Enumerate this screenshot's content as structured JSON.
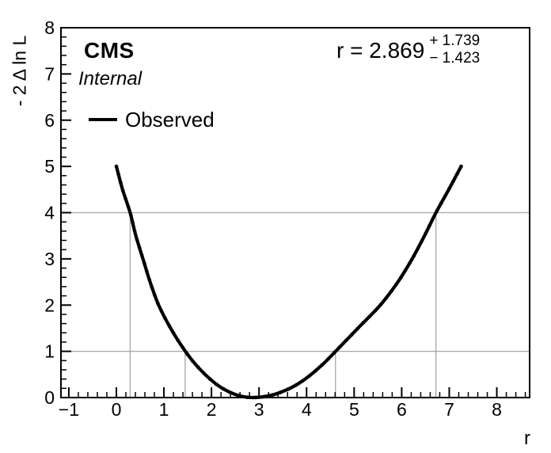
{
  "chart_data": {
    "type": "line",
    "header": {
      "experiment": "CMS",
      "status": "Internal"
    },
    "fit_result": {
      "text": "r = 2.869",
      "plus": "+ 1.739",
      "minus": "− 1.423",
      "parameter": "r",
      "value": 2.869,
      "uncertainty_up": 1.739,
      "uncertainty_down": 1.423
    },
    "xlabel": "r",
    "ylabel": "- 2 Δ ln L",
    "xlim": [
      -1.165,
      8.69
    ],
    "ylim": [
      0,
      8
    ],
    "x_ticks": [
      -1,
      0,
      1,
      2,
      3,
      4,
      5,
      6,
      7,
      8
    ],
    "y_ticks": [
      0,
      1,
      2,
      3,
      4,
      5,
      6,
      7,
      8
    ],
    "minor_divisions": 5,
    "grid_color": "#a6a6a6",
    "curve_color": "#000000",
    "legend": [
      {
        "label": "Observed",
        "color": "#000000",
        "style": "line"
      }
    ],
    "series": [
      {
        "name": "Observed",
        "color": "#000000",
        "points": [
          [
            0.0,
            5.0
          ],
          [
            0.13,
            4.5
          ],
          [
            0.29,
            4.0
          ],
          [
            0.41,
            3.5
          ],
          [
            0.56,
            3.0
          ],
          [
            0.71,
            2.5
          ],
          [
            0.89,
            2.0
          ],
          [
            1.14,
            1.5
          ],
          [
            1.45,
            1.0
          ],
          [
            1.68,
            0.7
          ],
          [
            1.97,
            0.4
          ],
          [
            2.23,
            0.2
          ],
          [
            2.55,
            0.05
          ],
          [
            2.87,
            0.0
          ],
          [
            3.26,
            0.05
          ],
          [
            3.65,
            0.2
          ],
          [
            3.97,
            0.4
          ],
          [
            4.32,
            0.7
          ],
          [
            4.61,
            1.0
          ],
          [
            5.08,
            1.5
          ],
          [
            5.55,
            2.0
          ],
          [
            5.92,
            2.5
          ],
          [
            6.22,
            3.0
          ],
          [
            6.48,
            3.5
          ],
          [
            6.72,
            4.0
          ],
          [
            6.99,
            4.5
          ],
          [
            7.25,
            5.0
          ]
        ]
      }
    ],
    "crossings": {
      "one_sigma": {
        "level": 1,
        "lo": 1.446,
        "hi": 4.608
      },
      "two_sigma": {
        "level": 4,
        "lo": 0.29,
        "hi": 6.72
      }
    }
  }
}
